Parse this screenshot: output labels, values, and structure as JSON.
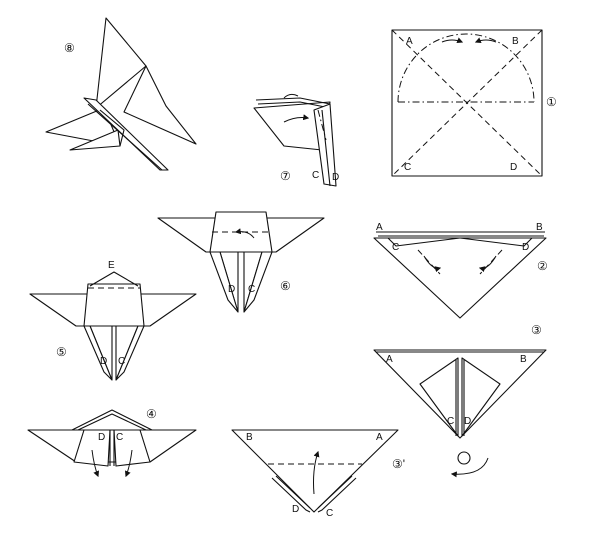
{
  "steps": {
    "s1": {
      "number": "①",
      "labels": {
        "a": "A",
        "b": "B",
        "c": "C",
        "d": "D"
      }
    },
    "s2": {
      "number": "②",
      "labels": {
        "a": "A",
        "b": "B",
        "c": "C",
        "d": "D"
      }
    },
    "s3": {
      "number": "③",
      "labels": {
        "a": "A",
        "b": "B",
        "c": "C",
        "d": "D"
      }
    },
    "s3p": {
      "number": "③'",
      "labels": {
        "a": "A",
        "b": "B",
        "c": "C",
        "d": "D"
      }
    },
    "s4": {
      "number": "④",
      "labels": {
        "c": "C",
        "d": "D"
      }
    },
    "s5": {
      "number": "⑤",
      "labels": {
        "c": "C",
        "d": "D",
        "e": "E"
      }
    },
    "s6": {
      "number": "⑥",
      "labels": {
        "c": "C",
        "d": "D"
      }
    },
    "s7": {
      "number": "⑦",
      "labels": {
        "c": "C",
        "d": "D"
      }
    },
    "s8": {
      "number": "⑧"
    }
  }
}
